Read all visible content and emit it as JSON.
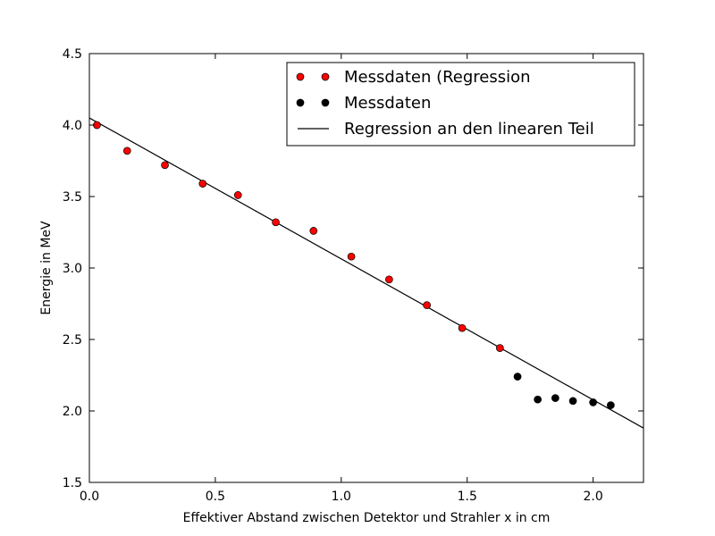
{
  "chart_data": {
    "type": "scatter",
    "xlabel": "Effektiver Abstand zwischen Detektor und Strahler x in cm",
    "ylabel": "Energie in MeV",
    "xlim": [
      0.0,
      2.2
    ],
    "ylim": [
      1.5,
      4.5
    ],
    "xticks": [
      "0.0",
      "0.5",
      "1.0",
      "1.5",
      "2.0"
    ],
    "yticks": [
      "1.5",
      "2.0",
      "2.5",
      "3.0",
      "3.5",
      "4.0",
      "4.5"
    ],
    "grid": false,
    "legend_position": "top-right",
    "series": [
      {
        "name": "Messdaten (Regression",
        "kind": "scatter",
        "color": "#ff0000",
        "points": [
          [
            0.03,
            4.0
          ],
          [
            0.15,
            3.82
          ],
          [
            0.3,
            3.72
          ],
          [
            0.45,
            3.59
          ],
          [
            0.59,
            3.51
          ],
          [
            0.74,
            3.32
          ],
          [
            0.89,
            3.26
          ],
          [
            1.04,
            3.08
          ],
          [
            1.19,
            2.92
          ],
          [
            1.34,
            2.74
          ],
          [
            1.48,
            2.58
          ],
          [
            1.63,
            2.44
          ]
        ]
      },
      {
        "name": "Messdaten",
        "kind": "scatter",
        "color": "#000000",
        "points": [
          [
            1.7,
            2.24
          ],
          [
            1.78,
            2.08
          ],
          [
            1.85,
            2.09
          ],
          [
            1.92,
            2.07
          ],
          [
            2.0,
            2.06
          ],
          [
            2.07,
            2.04
          ]
        ]
      },
      {
        "name": "Regression an den linearen Teil",
        "kind": "line",
        "color": "#000000",
        "points": [
          [
            0.0,
            4.05
          ],
          [
            2.2,
            1.88
          ]
        ]
      }
    ]
  }
}
